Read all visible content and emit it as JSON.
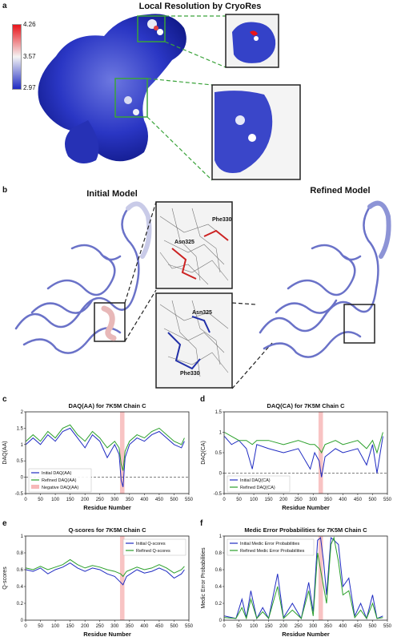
{
  "panels": {
    "a": {
      "letter": "a",
      "title": "Local Resolution by CryoRes",
      "colorbar_ticks": [
        "4.26",
        "3.57",
        "2.97"
      ],
      "colors": {
        "high": "#e8141a",
        "mid": "#f4f4f4",
        "low": "#1f2bc2",
        "zoom_frame": "#3aa33a"
      }
    },
    "b": {
      "letter": "b",
      "initial_label": "Initial Model",
      "refined_label": "Refined Model",
      "zoom_labels_top": [
        "Phe330",
        "Asn325"
      ],
      "zoom_labels_bottom": [
        "Asn325",
        "Phe330"
      ],
      "colors": {
        "initial_stick": "#cc2222",
        "refined_stick": "#2230a8",
        "ribbon": "#6a72c8",
        "mesh": "#555555"
      }
    },
    "c": {
      "letter": "c",
      "legend": [
        "Initial DAQ(AA)",
        "Refined DAQ(AA)",
        "Negative DAQ(AA)"
      ]
    },
    "d": {
      "letter": "d",
      "legend": [
        "Initial DAQ(CA)",
        "Refined DAQ(CA)"
      ]
    },
    "e": {
      "letter": "e",
      "legend": [
        "Initial Q-scores",
        "Refined Q-scores"
      ]
    },
    "f": {
      "letter": "f",
      "legend": [
        "Initial Medic Error Probabilities",
        "Refined Medic Error Probabilities"
      ]
    }
  },
  "chart_data": [
    {
      "id": "c",
      "type": "line",
      "title": "DAQ(AA) for 7K5M Chain C",
      "xlabel": "Residue Number",
      "ylabel": "DAQ(AA)",
      "xlim": [
        0,
        550
      ],
      "ylim": [
        -0.5,
        2.0
      ],
      "xticks": [
        0,
        50,
        100,
        150,
        200,
        250,
        300,
        350,
        400,
        450,
        500,
        550
      ],
      "yticks": [
        -0.5,
        0,
        0.5,
        1,
        1.5,
        2
      ],
      "hline": 0,
      "highlight": [
        318,
        333
      ],
      "legend_position": "lower-left",
      "x": [
        1,
        25,
        50,
        75,
        100,
        125,
        150,
        175,
        200,
        225,
        250,
        275,
        300,
        315,
        322,
        328,
        335,
        350,
        375,
        400,
        425,
        450,
        475,
        500,
        525,
        535
      ],
      "series": [
        {
          "name": "Initial DAQ(AA)",
          "color": "#1f2bc2",
          "values": [
            1.0,
            1.2,
            1.0,
            1.3,
            1.1,
            1.4,
            1.5,
            1.2,
            0.9,
            1.3,
            1.1,
            0.6,
            1.0,
            0.7,
            -0.1,
            -0.3,
            0.6,
            1.0,
            1.2,
            1.1,
            1.3,
            1.4,
            1.2,
            1.0,
            0.9,
            1.1
          ]
        },
        {
          "name": "Refined DAQ(AA)",
          "color": "#2ca02c",
          "values": [
            1.1,
            1.3,
            1.1,
            1.4,
            1.2,
            1.5,
            1.6,
            1.3,
            1.1,
            1.4,
            1.2,
            0.9,
            1.1,
            0.9,
            0.4,
            0.2,
            0.8,
            1.1,
            1.3,
            1.2,
            1.4,
            1.5,
            1.3,
            1.1,
            1.0,
            1.2
          ]
        }
      ]
    },
    {
      "id": "d",
      "type": "line",
      "title": "DAQ(CA) for 7K5M Chain C",
      "xlabel": "Residue Number",
      "ylabel": "DAQ(CA)",
      "xlim": [
        0,
        550
      ],
      "ylim": [
        -0.5,
        1.5
      ],
      "xticks": [
        0,
        50,
        100,
        150,
        200,
        250,
        300,
        350,
        400,
        450,
        500,
        550
      ],
      "yticks": [
        -0.5,
        0,
        0.5,
        1,
        1.5
      ],
      "hline": 0,
      "highlight": [
        318,
        333
      ],
      "legend_position": "lower-left",
      "x": [
        1,
        25,
        50,
        75,
        95,
        110,
        150,
        200,
        250,
        290,
        305,
        320,
        328,
        340,
        375,
        400,
        450,
        480,
        500,
        515,
        535
      ],
      "series": [
        {
          "name": "Initial DAQ(CA)",
          "color": "#1f2bc2",
          "values": [
            0.9,
            0.7,
            0.8,
            0.6,
            0.1,
            0.7,
            0.6,
            0.5,
            0.6,
            0.1,
            0.5,
            0.3,
            -0.1,
            0.4,
            0.6,
            0.5,
            0.6,
            0.2,
            0.7,
            0.0,
            0.9
          ]
        },
        {
          "name": "Refined DAQ(CA)",
          "color": "#2ca02c",
          "values": [
            1.0,
            0.9,
            0.8,
            0.8,
            0.7,
            0.8,
            0.8,
            0.7,
            0.8,
            0.7,
            0.7,
            0.6,
            0.5,
            0.7,
            0.8,
            0.7,
            0.8,
            0.6,
            0.8,
            0.5,
            1.0
          ]
        }
      ]
    },
    {
      "id": "e",
      "type": "line",
      "title": "Q-scores for 7K5M Chain C",
      "xlabel": "Residue Number",
      "ylabel": "Q-scores",
      "xlim": [
        0,
        550
      ],
      "ylim": [
        0.0,
        1.0
      ],
      "xticks": [
        0,
        50,
        100,
        150,
        200,
        250,
        300,
        350,
        400,
        450,
        500,
        550
      ],
      "yticks": [
        0.0,
        0.2,
        0.4,
        0.6,
        0.8,
        1.0
      ],
      "highlight": [
        318,
        333
      ],
      "legend_position": "upper-right",
      "x": [
        1,
        25,
        50,
        75,
        100,
        125,
        150,
        175,
        200,
        225,
        250,
        275,
        300,
        320,
        328,
        340,
        375,
        400,
        425,
        450,
        475,
        500,
        525,
        535
      ],
      "series": [
        {
          "name": "Initial Q-scores",
          "color": "#1f2bc2",
          "values": [
            0.6,
            0.58,
            0.62,
            0.55,
            0.6,
            0.63,
            0.68,
            0.62,
            0.58,
            0.62,
            0.6,
            0.55,
            0.52,
            0.45,
            0.42,
            0.52,
            0.6,
            0.56,
            0.58,
            0.62,
            0.58,
            0.5,
            0.55,
            0.6
          ]
        },
        {
          "name": "Refined Q-scores",
          "color": "#2ca02c",
          "values": [
            0.62,
            0.6,
            0.64,
            0.6,
            0.63,
            0.66,
            0.72,
            0.66,
            0.62,
            0.65,
            0.63,
            0.6,
            0.58,
            0.55,
            0.52,
            0.58,
            0.63,
            0.6,
            0.62,
            0.66,
            0.62,
            0.56,
            0.6,
            0.64
          ]
        }
      ]
    },
    {
      "id": "f",
      "type": "line",
      "title": "Medic Error Probabilities for 7K5M Chain C",
      "xlabel": "Residue Number",
      "ylabel": "Medic Error Probabilities",
      "xlim": [
        0,
        550
      ],
      "ylim": [
        0.0,
        1.0
      ],
      "xticks": [
        0,
        50,
        100,
        150,
        200,
        250,
        300,
        350,
        400,
        450,
        500,
        550
      ],
      "yticks": [
        0.0,
        0.2,
        0.4,
        0.6,
        0.8,
        1.0
      ],
      "highlight": [
        318,
        333
      ],
      "legend_position": "upper-left",
      "x": [
        1,
        40,
        60,
        75,
        90,
        110,
        130,
        150,
        180,
        200,
        230,
        260,
        285,
        300,
        315,
        325,
        335,
        345,
        360,
        370,
        385,
        400,
        420,
        440,
        460,
        480,
        500,
        515,
        535
      ],
      "series": [
        {
          "name": "Initial Medic Error Probabilities",
          "color": "#1f2bc2",
          "values": [
            0.05,
            0.02,
            0.25,
            0.03,
            0.35,
            0.02,
            0.15,
            0.02,
            0.55,
            0.03,
            0.2,
            0.02,
            0.45,
            0.1,
            0.95,
            0.98,
            0.7,
            0.3,
            0.98,
            0.95,
            0.9,
            0.4,
            0.5,
            0.05,
            0.2,
            0.02,
            0.3,
            0.02,
            0.05
          ]
        },
        {
          "name": "Refined Medic Error Probabilities",
          "color": "#2ca02c",
          "values": [
            0.03,
            0.02,
            0.15,
            0.02,
            0.25,
            0.02,
            0.1,
            0.02,
            0.4,
            0.02,
            0.12,
            0.02,
            0.35,
            0.05,
            0.8,
            0.6,
            0.4,
            0.2,
            0.9,
            0.98,
            0.7,
            0.3,
            0.35,
            0.03,
            0.12,
            0.02,
            0.2,
            0.02,
            0.03
          ]
        }
      ]
    }
  ]
}
